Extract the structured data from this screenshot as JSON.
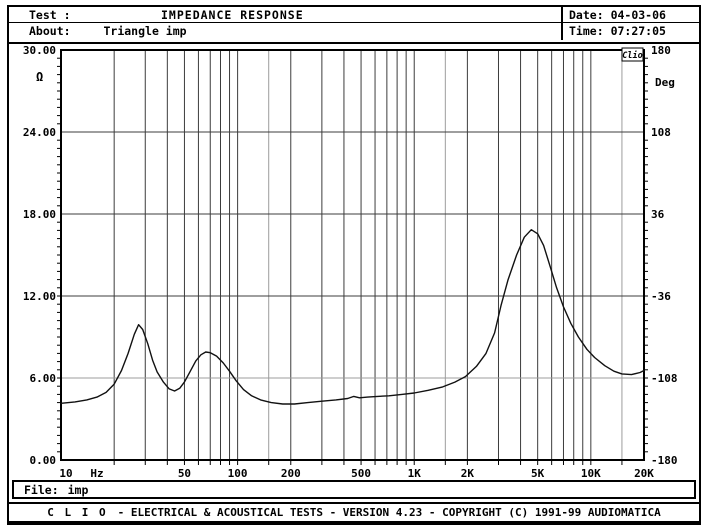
{
  "header": {
    "test_label": "Test :",
    "title": "IMPEDANCE RESPONSE",
    "about_label": "About:",
    "about_value": "Triangle imp",
    "date_label": "Date:",
    "date_value": "04-03-06",
    "time_label": "Time:",
    "time_value": "07:27:05"
  },
  "file_bar": {
    "label": "File:",
    "value": "imp"
  },
  "footer": {
    "brand": "C L I O",
    "text": "-  ELECTRICAL & ACOUSTICAL TESTS  -  VERSION 4.23  -  COPYRIGHT (C) 1991-99 AUDIOMATICA"
  },
  "chart_data": {
    "type": "line",
    "title": "IMPEDANCE RESPONSE",
    "watermark": "Clio",
    "grid": "on",
    "colors": {
      "curve": "#111111",
      "grid_major": "#3c3c3c",
      "grid_minor": "#9c9c9c",
      "axis": "#000000"
    },
    "x": {
      "label": "Hz",
      "scale": "log",
      "min": 10,
      "max": 20000,
      "ticks": [
        {
          "v": 10,
          "t": "10"
        },
        {
          "v": 50,
          "t": "50"
        },
        {
          "v": 100,
          "t": "100"
        },
        {
          "v": 200,
          "t": "200"
        },
        {
          "v": 500,
          "t": "500"
        },
        {
          "v": 1000,
          "t": "1K"
        },
        {
          "v": 2000,
          "t": "2K"
        },
        {
          "v": 5000,
          "t": "5K"
        },
        {
          "v": 10000,
          "t": "10K"
        },
        {
          "v": 20000,
          "t": "20K"
        }
      ],
      "gridlines": [
        20,
        30,
        40,
        50,
        60,
        70,
        80,
        90,
        100,
        150,
        200,
        300,
        400,
        500,
        600,
        700,
        800,
        900,
        1000,
        1500,
        2000,
        3000,
        4000,
        5000,
        6000,
        7000,
        8000,
        9000,
        10000,
        15000
      ],
      "gray_gridlines": [
        150,
        1500,
        15000
      ]
    },
    "y_left": {
      "label": "Ω",
      "unit": "ohm",
      "min": 0,
      "max": 30,
      "ticks": [
        {
          "v": 30,
          "t": "30.00"
        },
        {
          "v": 24,
          "t": "24.00"
        },
        {
          "v": 18,
          "t": "18.00"
        },
        {
          "v": 12,
          "t": "12.00"
        },
        {
          "v": 6,
          "t": "6.00"
        },
        {
          "v": 0,
          "t": "0.00"
        }
      ],
      "inner_gridlines": [
        24,
        18,
        12,
        6
      ],
      "gray_gridlines": [
        6
      ],
      "minor_tick_step": 0.6
    },
    "y_right": {
      "label": "Deg",
      "unit": "degrees",
      "min": -180,
      "max": 180,
      "ticks": [
        {
          "v": 180,
          "t": "180"
        },
        {
          "v": 108,
          "t": "108"
        },
        {
          "v": 36,
          "t": "36"
        },
        {
          "v": -36,
          "t": "-36"
        },
        {
          "v": -108,
          "t": "-108"
        },
        {
          "v": -180,
          "t": "-180"
        }
      ]
    },
    "series": [
      {
        "name": "impedance_magnitude",
        "unit": "ohm_vs_hz",
        "points": [
          [
            10,
            4.15
          ],
          [
            12,
            4.25
          ],
          [
            14,
            4.4
          ],
          [
            16,
            4.6
          ],
          [
            18,
            4.95
          ],
          [
            20,
            5.55
          ],
          [
            22,
            6.55
          ],
          [
            24,
            7.8
          ],
          [
            26,
            9.2
          ],
          [
            27.5,
            9.9
          ],
          [
            29,
            9.55
          ],
          [
            31,
            8.5
          ],
          [
            33,
            7.3
          ],
          [
            35,
            6.45
          ],
          [
            38,
            5.7
          ],
          [
            41,
            5.2
          ],
          [
            44,
            5.05
          ],
          [
            47,
            5.25
          ],
          [
            50,
            5.7
          ],
          [
            54,
            6.5
          ],
          [
            58,
            7.25
          ],
          [
            62,
            7.7
          ],
          [
            66,
            7.9
          ],
          [
            70,
            7.85
          ],
          [
            76,
            7.6
          ],
          [
            83,
            7.1
          ],
          [
            90,
            6.5
          ],
          [
            98,
            5.8
          ],
          [
            108,
            5.15
          ],
          [
            120,
            4.7
          ],
          [
            135,
            4.4
          ],
          [
            155,
            4.2
          ],
          [
            180,
            4.1
          ],
          [
            210,
            4.1
          ],
          [
            250,
            4.2
          ],
          [
            300,
            4.3
          ],
          [
            360,
            4.4
          ],
          [
            420,
            4.5
          ],
          [
            455,
            4.65
          ],
          [
            490,
            4.55
          ],
          [
            545,
            4.6
          ],
          [
            620,
            4.65
          ],
          [
            720,
            4.7
          ],
          [
            850,
            4.8
          ],
          [
            1000,
            4.9
          ],
          [
            1200,
            5.1
          ],
          [
            1450,
            5.35
          ],
          [
            1700,
            5.7
          ],
          [
            1950,
            6.1
          ],
          [
            2250,
            6.85
          ],
          [
            2550,
            7.8
          ],
          [
            2850,
            9.3
          ],
          [
            3100,
            11.3
          ],
          [
            3400,
            13.2
          ],
          [
            3800,
            15.0
          ],
          [
            4200,
            16.3
          ],
          [
            4600,
            16.85
          ],
          [
            5000,
            16.55
          ],
          [
            5400,
            15.7
          ],
          [
            5900,
            14.1
          ],
          [
            6400,
            12.6
          ],
          [
            7000,
            11.2
          ],
          [
            7700,
            10.0
          ],
          [
            8500,
            9.0
          ],
          [
            9500,
            8.1
          ],
          [
            10500,
            7.5
          ],
          [
            12000,
            6.9
          ],
          [
            13500,
            6.5
          ],
          [
            15000,
            6.3
          ],
          [
            17000,
            6.25
          ],
          [
            19000,
            6.4
          ],
          [
            20000,
            6.55
          ]
        ]
      }
    ]
  }
}
